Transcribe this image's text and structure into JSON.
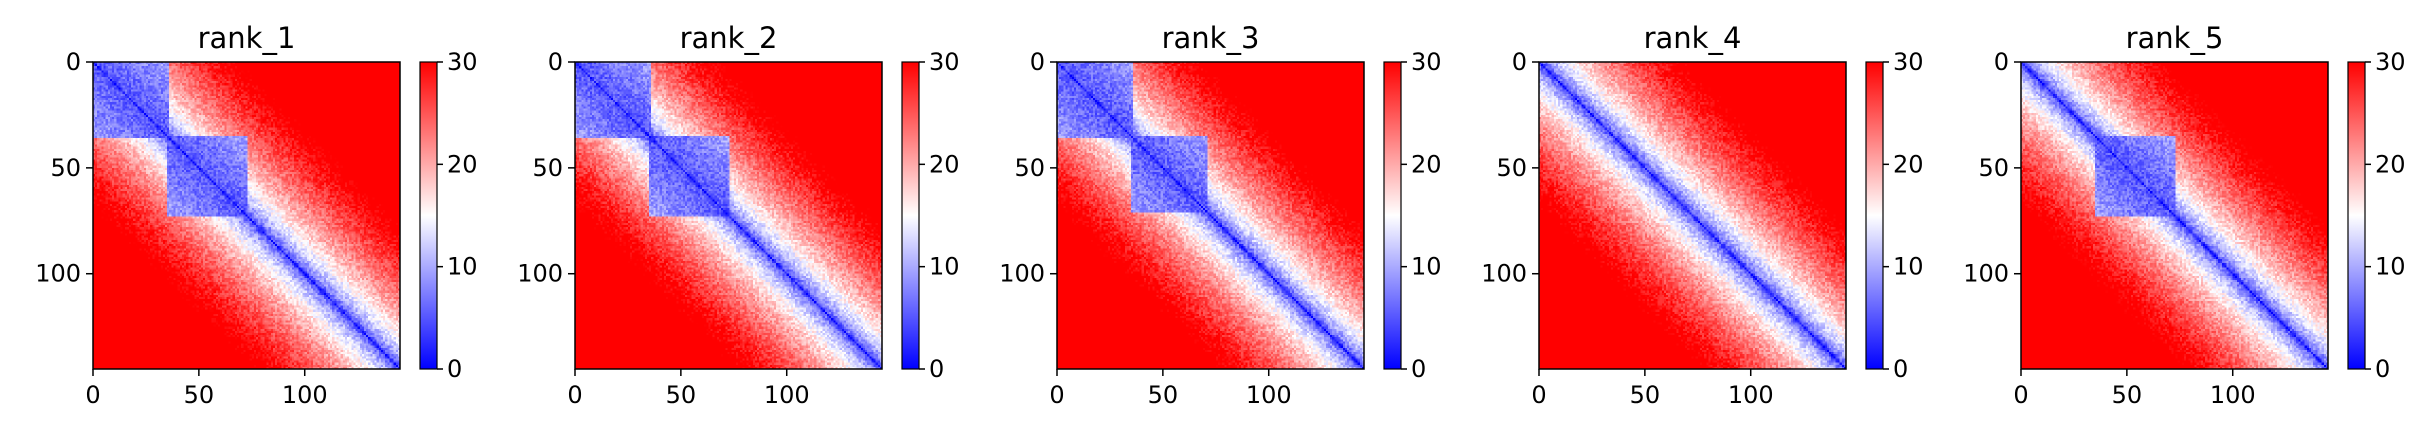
{
  "chart_data": [
    {
      "type": "heatmap",
      "title": "rank_1",
      "colormap": "bwr",
      "clim": [
        0,
        30
      ],
      "matrix_size": 145,
      "xlim": [
        0,
        145
      ],
      "ylim": [
        145,
        0
      ],
      "x_ticks": [
        0,
        50,
        100
      ],
      "y_ticks": [
        0,
        50,
        100
      ],
      "colorbar_ticks": [
        0,
        10,
        20,
        30
      ],
      "diagonal_blocks": [
        [
          0,
          35
        ],
        [
          35,
          72
        ]
      ]
    },
    {
      "type": "heatmap",
      "title": "rank_2",
      "colormap": "bwr",
      "clim": [
        0,
        30
      ],
      "matrix_size": 145,
      "xlim": [
        0,
        145
      ],
      "ylim": [
        145,
        0
      ],
      "x_ticks": [
        0,
        50,
        100
      ],
      "y_ticks": [
        0,
        50,
        100
      ],
      "colorbar_ticks": [
        0,
        10,
        20,
        30
      ],
      "diagonal_blocks": [
        [
          0,
          35
        ],
        [
          35,
          72
        ]
      ]
    },
    {
      "type": "heatmap",
      "title": "rank_3",
      "colormap": "bwr",
      "clim": [
        0,
        30
      ],
      "matrix_size": 145,
      "xlim": [
        0,
        145
      ],
      "ylim": [
        145,
        0
      ],
      "x_ticks": [
        0,
        50,
        100
      ],
      "y_ticks": [
        0,
        50,
        100
      ],
      "colorbar_ticks": [
        0,
        10,
        20,
        30
      ],
      "diagonal_blocks": [
        [
          0,
          35
        ],
        [
          35,
          70
        ]
      ]
    },
    {
      "type": "heatmap",
      "title": "rank_4",
      "colormap": "bwr",
      "clim": [
        0,
        30
      ],
      "matrix_size": 145,
      "xlim": [
        0,
        145
      ],
      "ylim": [
        145,
        0
      ],
      "x_ticks": [
        0,
        50,
        100
      ],
      "y_ticks": [
        0,
        50,
        100
      ],
      "colorbar_ticks": [
        0,
        10,
        20,
        30
      ],
      "diagonal_blocks": []
    },
    {
      "type": "heatmap",
      "title": "rank_5",
      "colormap": "bwr",
      "clim": [
        0,
        30
      ],
      "matrix_size": 145,
      "xlim": [
        0,
        145
      ],
      "ylim": [
        145,
        0
      ],
      "x_ticks": [
        0,
        50,
        100
      ],
      "y_ticks": [
        0,
        50,
        100
      ],
      "colorbar_ticks": [
        0,
        10,
        20,
        30
      ],
      "diagonal_blocks": [
        [
          35,
          72
        ]
      ]
    }
  ],
  "colors": {
    "low": "#0000ff",
    "mid": "#ffffff",
    "high": "#ff0000"
  }
}
